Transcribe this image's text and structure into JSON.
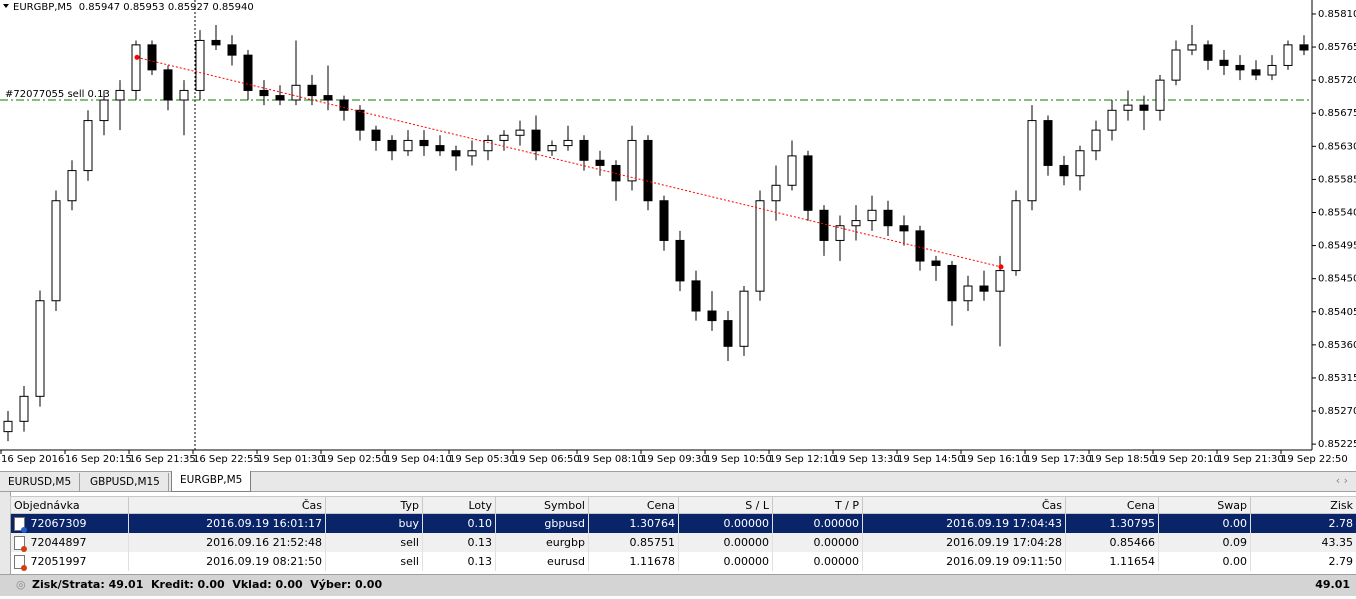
{
  "chart_data": {
    "type": "candlestick",
    "title": "EURGBP,M5  0.85947 0.85953 0.85927 0.85940",
    "categories": [
      "16 Sep 2016",
      null,
      null,
      null,
      "16 Sep 20:15",
      null,
      null,
      null,
      "16 Sep 21:35",
      null,
      null,
      null,
      "16 Sep 22:55",
      null,
      null,
      null,
      "19 Sep 01:30",
      null,
      null,
      null,
      "19 Sep 02:50",
      null,
      null,
      null,
      "19 Sep 04:10",
      null,
      null,
      null,
      "19 Sep 05:30",
      null,
      null,
      null,
      "19 Sep 06:50",
      null,
      null,
      null,
      "19 Sep 08:10",
      null,
      null,
      null,
      "19 Sep 09:30",
      null,
      null,
      null,
      "19 Sep 10:50",
      null,
      null,
      null,
      "19 Sep 12:10",
      null,
      null,
      null,
      "19 Sep 13:30",
      null,
      null,
      null,
      "19 Sep 14:50",
      null,
      null,
      null,
      "19 Sep 16:10",
      null,
      null,
      null,
      "19 Sep 17:30",
      null,
      null,
      null,
      "19 Sep 18:50",
      null,
      null,
      null,
      "19 Sep 20:10",
      null,
      null,
      null,
      "19 Sep 21:30",
      null,
      null,
      null,
      "19 Sep 22:50",
      null
    ],
    "open": [
      0.85242,
      0.85256,
      0.8529,
      0.8542,
      0.85556,
      0.85597,
      0.85665,
      0.85693,
      0.85706,
      0.85768,
      0.85734,
      0.85693,
      0.85706,
      0.85774,
      0.85768,
      0.85754,
      0.85706,
      0.85699,
      0.85693,
      0.85713,
      0.85699,
      0.85693,
      0.85679,
      0.85652,
      0.85638,
      0.85624,
      0.85638,
      0.85631,
      0.85624,
      0.85617,
      0.85624,
      0.85638,
      0.85645,
      0.85652,
      0.85624,
      0.85631,
      0.85638,
      0.85611,
      0.85604,
      0.85583,
      0.85638,
      0.85556,
      0.85502,
      0.85447,
      0.85406,
      0.85393,
      0.85358,
      0.85433,
      0.85556,
      0.85577,
      0.85617,
      0.85543,
      0.85502,
      0.85522,
      0.85529,
      0.85543,
      0.85522,
      0.85515,
      0.85474,
      0.85468,
      0.8542,
      0.8544,
      0.85433,
      0.85461,
      0.85556,
      0.85665,
      0.85604,
      0.8559,
      0.85624,
      0.85652,
      0.85679,
      0.85686,
      0.85679,
      0.8572,
      0.85761,
      0.85768,
      0.85747,
      0.8574,
      0.85734,
      0.85727,
      0.8574,
      0.85768
    ],
    "high": [
      0.8527,
      0.85304,
      0.85434,
      0.8557,
      0.85611,
      0.85679,
      0.85706,
      0.8572,
      0.85774,
      0.85774,
      0.8574,
      0.8572,
      0.85788,
      0.85795,
      0.85781,
      0.85761,
      0.8572,
      0.85713,
      0.85774,
      0.85727,
      0.8574,
      0.85699,
      0.85686,
      0.85658,
      0.85645,
      0.85652,
      0.85652,
      0.85645,
      0.85631,
      0.85638,
      0.85645,
      0.85652,
      0.85665,
      0.85672,
      0.85638,
      0.85658,
      0.85645,
      0.85624,
      0.85611,
      0.85658,
      0.85645,
      0.85563,
      0.85515,
      0.85461,
      0.85433,
      0.85406,
      0.8544,
      0.8557,
      0.85604,
      0.85638,
      0.85624,
      0.8555,
      0.85536,
      0.8555,
      0.85563,
      0.85556,
      0.85536,
      0.85522,
      0.85481,
      0.85474,
      0.85454,
      0.85461,
      0.85481,
      0.8557,
      0.85686,
      0.85672,
      0.85617,
      0.85631,
      0.85665,
      0.85693,
      0.85706,
      0.85699,
      0.85727,
      0.85774,
      0.85795,
      0.85774,
      0.85761,
      0.85754,
      0.85747,
      0.85754,
      0.85774,
      0.85781
    ],
    "low": [
      0.85229,
      0.85242,
      0.85276,
      0.85406,
      0.85543,
      0.85583,
      0.85645,
      0.85652,
      0.85693,
      0.85727,
      0.85679,
      0.85645,
      0.85693,
      0.85761,
      0.8574,
      0.85693,
      0.85686,
      0.85686,
      0.85686,
      0.85686,
      0.85679,
      0.85665,
      0.85638,
      0.85624,
      0.85611,
      0.85617,
      0.85617,
      0.85617,
      0.85597,
      0.85604,
      0.85611,
      0.85624,
      0.85631,
      0.85611,
      0.85617,
      0.85624,
      0.85597,
      0.8559,
      0.85556,
      0.8557,
      0.85543,
      0.85488,
      0.85433,
      0.85393,
      0.85379,
      0.85338,
      0.85345,
      0.8542,
      0.85529,
      0.8557,
      0.85529,
      0.85481,
      0.85474,
      0.85502,
      0.85515,
      0.85508,
      0.85495,
      0.85461,
      0.85447,
      0.85386,
      0.85406,
      0.8542,
      0.85358,
      0.85454,
      0.85543,
      0.8559,
      0.85577,
      0.8557,
      0.85611,
      0.85638,
      0.85665,
      0.85652,
      0.85665,
      0.85713,
      0.85754,
      0.85734,
      0.85727,
      0.8572,
      0.8572,
      0.8572,
      0.85734,
      0.85754
    ],
    "close": [
      0.85256,
      0.8529,
      0.8542,
      0.85556,
      0.85597,
      0.85665,
      0.85693,
      0.85706,
      0.85768,
      0.85734,
      0.85693,
      0.85706,
      0.85774,
      0.85768,
      0.85754,
      0.85706,
      0.85699,
      0.85693,
      0.85713,
      0.85699,
      0.85693,
      0.85679,
      0.85652,
      0.85638,
      0.85624,
      0.85638,
      0.85631,
      0.85624,
      0.85617,
      0.85624,
      0.85638,
      0.85645,
      0.85652,
      0.85624,
      0.85631,
      0.85638,
      0.85611,
      0.85604,
      0.85583,
      0.85638,
      0.85556,
      0.85502,
      0.85447,
      0.85406,
      0.85393,
      0.85358,
      0.85433,
      0.85556,
      0.85577,
      0.85617,
      0.85543,
      0.85502,
      0.85522,
      0.85529,
      0.85543,
      0.85522,
      0.85515,
      0.85474,
      0.85468,
      0.8542,
      0.8544,
      0.85433,
      0.85461,
      0.85556,
      0.85665,
      0.85604,
      0.8559,
      0.85624,
      0.85652,
      0.85679,
      0.85686,
      0.85679,
      0.8572,
      0.85761,
      0.85768,
      0.85747,
      0.8574,
      0.85734,
      0.85727,
      0.8574,
      0.85768,
      0.85761
    ],
    "ylim": [
      0.85217,
      0.85829
    ],
    "yticks": [
      {
        "value": 0.8581,
        "label": "0.85810"
      },
      {
        "value": 0.85765,
        "label": "0.85765"
      },
      {
        "value": 0.8572,
        "label": "0.85720"
      },
      {
        "value": 0.85675,
        "label": "0.85675"
      },
      {
        "value": 0.8563,
        "label": "0.85630"
      },
      {
        "value": 0.85585,
        "label": "0.85585"
      },
      {
        "value": 0.8554,
        "label": "0.85540"
      },
      {
        "value": 0.85495,
        "label": "0.85495"
      },
      {
        "value": 0.8545,
        "label": "0.85450"
      },
      {
        "value": 0.85405,
        "label": "0.85405"
      },
      {
        "value": 0.8536,
        "label": "0.85360"
      },
      {
        "value": 0.85315,
        "label": "0.85315"
      },
      {
        "value": 0.8527,
        "label": "0.85270"
      },
      {
        "value": 0.85225,
        "label": "0.85225"
      }
    ],
    "order_line": {
      "label": "#72077055 sell 0.13",
      "price": 0.85693,
      "color": "#008000"
    },
    "trade_line_color": "#ff0000"
  },
  "tabs": [
    "EURUSD,M5",
    "GBPUSD,M15",
    "EURGBP,M5"
  ],
  "table": {
    "columns": [
      "Objednávka",
      "Čas",
      "Typ",
      "Loty",
      "Symbol",
      "Cena",
      "S / L",
      "T / P",
      "Čas",
      "Cena",
      "Swap",
      "Zisk"
    ],
    "rows": [
      [
        "72067309",
        "2016.09.19 16:01:17",
        "buy",
        "0.10",
        "gbpusd",
        "1.30764",
        "0.00000",
        "0.00000",
        "2016.09.19 17:04:43",
        "1.30795",
        "0.00",
        "2.78"
      ],
      [
        "72044897",
        "2016.09.16 21:52:48",
        "sell",
        "0.13",
        "eurgbp",
        "0.85751",
        "0.00000",
        "0.00000",
        "2016.09.19 17:04:28",
        "0.85466",
        "0.09",
        "43.35"
      ],
      [
        "72051997",
        "2016.09.19 08:21:50",
        "sell",
        "0.13",
        "eurusd",
        "1.11678",
        "0.00000",
        "0.00000",
        "2016.09.19 09:11:50",
        "1.11654",
        "0.00",
        "2.79"
      ]
    ]
  },
  "footer": {
    "summary": "Zisk/Strata: 49.01  Kredit: 0.00  Vklad: 0.00  Výber: 0.00",
    "total": "49.01"
  }
}
